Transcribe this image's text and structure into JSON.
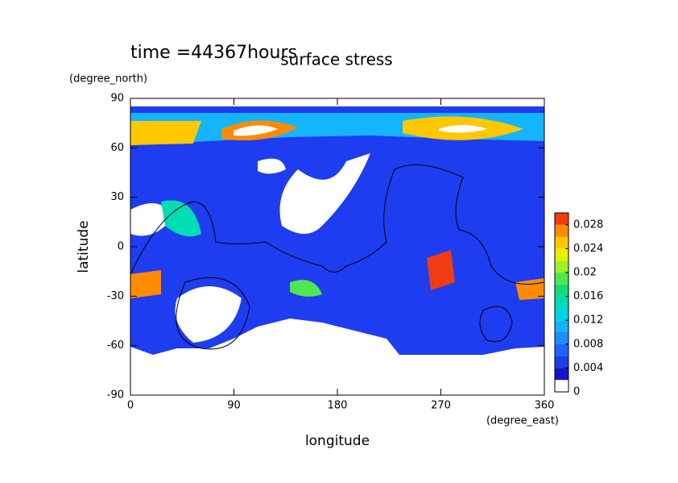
{
  "chart_data": {
    "type": "contour",
    "title": "surface stress",
    "subtitle": "time =44367hours",
    "x_label": "longitude",
    "x_unit": "(degree_east)",
    "y_label": "latitude",
    "y_unit": "(degree_north)",
    "xlim": [
      0,
      360
    ],
    "xticks": [
      0,
      90,
      180,
      270,
      360
    ],
    "ylim": [
      -90,
      90
    ],
    "yticks": [
      -90,
      -60,
      -30,
      0,
      30,
      60,
      90
    ],
    "colorbar": {
      "lim": [
        0,
        0.03
      ],
      "ticks": [
        0,
        0.004,
        0.008,
        0.012,
        0.016,
        0.02,
        0.024,
        0.028
      ],
      "colors": [
        "#ffffff",
        "#1414c8",
        "#1e3cf0",
        "#1e64ff",
        "#1e8cff",
        "#14b4ff",
        "#00d2e6",
        "#00dcb4",
        "#14dc78",
        "#50e650",
        "#a0f028",
        "#e6f000",
        "#ffc800",
        "#ff8c00",
        "#f03c14"
      ]
    }
  }
}
